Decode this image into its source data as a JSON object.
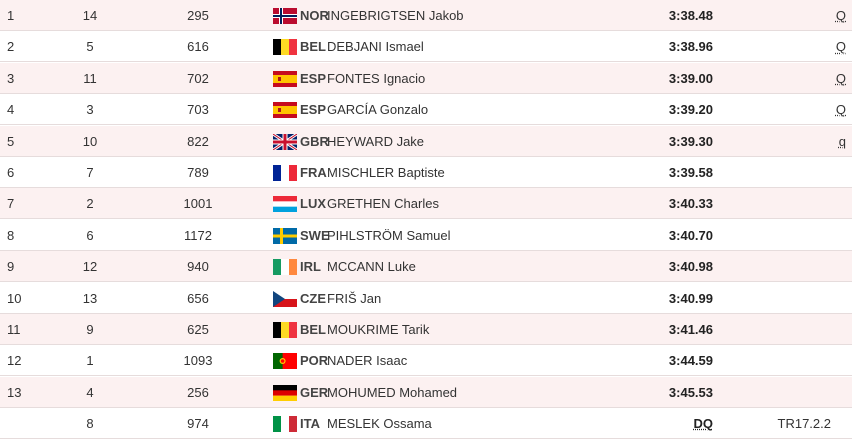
{
  "table": {
    "rows": [
      {
        "rank": "1",
        "order": "14",
        "bib": "295",
        "nat": "NOR",
        "name": "INGEBRIGTSEN Jakob",
        "time": "3:38.48",
        "q": "Q"
      },
      {
        "rank": "2",
        "order": "5",
        "bib": "616",
        "nat": "BEL",
        "name": "DEBJANI Ismael",
        "time": "3:38.96",
        "q": "Q"
      },
      {
        "rank": "3",
        "order": "11",
        "bib": "702",
        "nat": "ESP",
        "name": "FONTES Ignacio",
        "time": "3:39.00",
        "q": "Q"
      },
      {
        "rank": "4",
        "order": "3",
        "bib": "703",
        "nat": "ESP",
        "name": "GARCÍA Gonzalo",
        "time": "3:39.20",
        "q": "Q"
      },
      {
        "rank": "5",
        "order": "10",
        "bib": "822",
        "nat": "GBR",
        "name": "HEYWARD Jake",
        "time": "3:39.30",
        "q": "q"
      },
      {
        "rank": "6",
        "order": "7",
        "bib": "789",
        "nat": "FRA",
        "name": "MISCHLER Baptiste",
        "time": "3:39.58"
      },
      {
        "rank": "7",
        "order": "2",
        "bib": "1001",
        "nat": "LUX",
        "name": "GRETHEN Charles",
        "time": "3:40.33"
      },
      {
        "rank": "8",
        "order": "6",
        "bib": "1172",
        "nat": "SWE",
        "name": "PIHLSTRÖM Samuel",
        "time": "3:40.70"
      },
      {
        "rank": "9",
        "order": "12",
        "bib": "940",
        "nat": "IRL",
        "name": "MCCANN Luke",
        "time": "3:40.98"
      },
      {
        "rank": "10",
        "order": "13",
        "bib": "656",
        "nat": "CZE",
        "name": "FRIŠ Jan",
        "time": "3:40.99"
      },
      {
        "rank": "11",
        "order": "9",
        "bib": "625",
        "nat": "BEL",
        "name": "MOUKRIME Tarik",
        "time": "3:41.46"
      },
      {
        "rank": "12",
        "order": "1",
        "bib": "1093",
        "nat": "POR",
        "name": "NADER Isaac",
        "time": "3:44.59"
      },
      {
        "rank": "13",
        "order": "4",
        "bib": "256",
        "nat": "GER",
        "name": "MOHUMED Mohamed",
        "time": "3:45.53"
      },
      {
        "order": "8",
        "bib": "974",
        "nat": "ITA",
        "name": "MESLEK Ossama",
        "time": "DQ",
        "note": "TR17.2.2"
      }
    ]
  }
}
